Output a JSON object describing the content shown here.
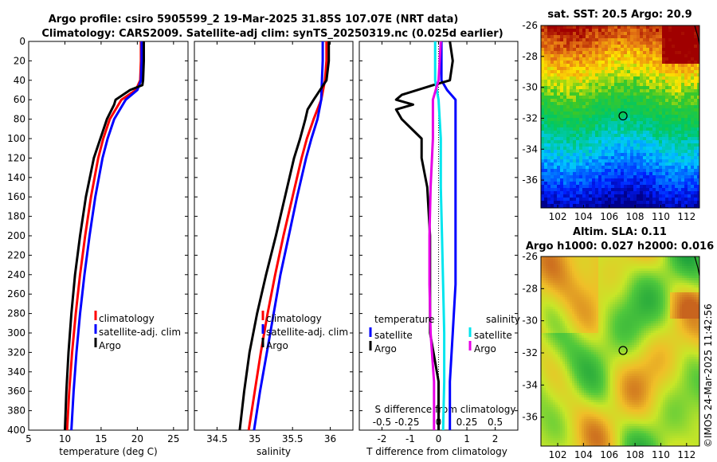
{
  "titles": {
    "line1": "Argo profile: csiro 5905599_2 19-Mar-2025 31.85S 107.07E (NRT data)",
    "line2": "Climatology: CARS2009. Satellite-adj clim: synTS_20250319.nc (0.025d earlier)",
    "sst": "sat. SST: 20.5 Argo: 20.9",
    "sla1": "Altim. SLA: 0.11",
    "sla2": "Argo h1000: 0.027 h2000: 0.016"
  },
  "watermark": "©IMOS 24-Mar-2025 11:42:56",
  "colors": {
    "climatology": "#ff0000",
    "satellite": "#0000ff",
    "argo": "#000000",
    "sat_s": "#00e5ee",
    "argo_s": "#e600e6"
  },
  "chart_data": [
    {
      "type": "line",
      "name": "temperature-profile",
      "xlabel": "temperature (deg C)",
      "xlim": [
        5,
        27
      ],
      "xticks": [
        5,
        10,
        15,
        20,
        25
      ],
      "ylim": [
        400,
        0
      ],
      "yticks": [
        0,
        20,
        40,
        60,
        80,
        100,
        120,
        140,
        160,
        180,
        200,
        220,
        240,
        260,
        280,
        300,
        320,
        340,
        360,
        380,
        400
      ],
      "legend": [
        "climatology",
        "satellite-adj. clim",
        "Argo"
      ],
      "series": [
        {
          "name": "climatology",
          "color": "#ff0000",
          "depth": [
            0,
            20,
            40,
            50,
            60,
            80,
            100,
            120,
            160,
            200,
            240,
            280,
            320,
            360,
            400
          ],
          "values": [
            20.5,
            20.5,
            20.4,
            19.8,
            17.8,
            16.2,
            15.3,
            14.6,
            13.6,
            12.8,
            12.1,
            11.5,
            11.0,
            10.6,
            10.3
          ]
        },
        {
          "name": "satellite-adj. clim",
          "color": "#0000ff",
          "depth": [
            0,
            20,
            40,
            50,
            60,
            80,
            100,
            120,
            160,
            200,
            240,
            280,
            320,
            360,
            400
          ],
          "values": [
            20.6,
            20.6,
            20.5,
            20.0,
            18.4,
            16.8,
            15.9,
            15.2,
            14.2,
            13.4,
            12.7,
            12.1,
            11.6,
            11.2,
            10.9
          ]
        },
        {
          "name": "Argo",
          "color": "#000000",
          "depth": [
            0,
            20,
            40,
            45,
            50,
            60,
            65,
            80,
            100,
            120,
            160,
            200,
            240,
            280,
            320,
            360,
            400
          ],
          "values": [
            20.9,
            20.9,
            20.8,
            20.7,
            19.0,
            17.0,
            16.8,
            15.8,
            14.9,
            14.0,
            12.9,
            12.1,
            11.4,
            10.9,
            10.5,
            10.2,
            10.0
          ]
        }
      ]
    },
    {
      "type": "line",
      "name": "salinity-profile",
      "xlabel": "salinity",
      "xlim": [
        34.2,
        36.3
      ],
      "xticks": [
        34.5,
        35,
        35.5,
        36
      ],
      "ylim": [
        400,
        0
      ],
      "legend": [
        "climatology",
        "satellite-adj. clim",
        "Argo"
      ],
      "series": [
        {
          "name": "climatology",
          "color": "#ff0000",
          "depth": [
            0,
            20,
            40,
            60,
            80,
            100,
            120,
            160,
            200,
            240,
            280,
            320,
            360,
            400
          ],
          "values": [
            35.95,
            35.95,
            35.93,
            35.88,
            35.78,
            35.69,
            35.62,
            35.5,
            35.38,
            35.27,
            35.17,
            35.08,
            35.0,
            34.92
          ]
        },
        {
          "name": "satellite-adj. clim",
          "color": "#0000ff",
          "depth": [
            0,
            20,
            40,
            60,
            80,
            100,
            120,
            160,
            200,
            240,
            280,
            320,
            360,
            400
          ],
          "values": [
            35.9,
            35.9,
            35.89,
            35.88,
            35.83,
            35.75,
            35.68,
            35.56,
            35.45,
            35.34,
            35.25,
            35.16,
            35.07,
            34.99
          ]
        },
        {
          "name": "Argo",
          "color": "#000000",
          "depth": [
            0,
            20,
            40,
            60,
            70,
            80,
            100,
            120,
            160,
            200,
            240,
            280,
            320,
            360,
            400
          ],
          "values": [
            35.98,
            35.98,
            35.95,
            35.78,
            35.7,
            35.67,
            35.6,
            35.52,
            35.4,
            35.28,
            35.15,
            35.03,
            34.93,
            34.86,
            34.8
          ]
        }
      ]
    },
    {
      "type": "line",
      "name": "difference-profile",
      "xlabel": "T difference from climatology",
      "xlim": [
        -2.8,
        2.8
      ],
      "xticks": [
        -2,
        -1,
        0,
        1,
        2
      ],
      "top_label": "S difference from climatology",
      "top_ticks": [
        "-0.5",
        "-0.25",
        "0",
        "0.25",
        "0.5"
      ],
      "ylim": [
        400,
        0
      ],
      "legend_temperature": {
        "title": "temperature",
        "items": [
          "satellite",
          "Argo"
        ]
      },
      "legend_salinity": {
        "title": "salinity",
        "items": [
          "satellite",
          "Argo"
        ]
      },
      "series": [
        {
          "name": "temperature satellite",
          "color": "#0000ff",
          "depth": [
            0,
            40,
            50,
            60,
            80,
            100,
            150,
            200,
            250,
            300,
            350,
            400
          ],
          "values": [
            0.1,
            0.1,
            0.3,
            0.6,
            0.6,
            0.6,
            0.6,
            0.6,
            0.6,
            0.5,
            0.4,
            0.4
          ]
        },
        {
          "name": "temperature Argo",
          "color": "#000000",
          "depth": [
            0,
            20,
            40,
            45,
            55,
            60,
            65,
            70,
            80,
            100,
            120,
            150,
            200,
            250,
            300,
            350,
            400
          ],
          "values": [
            0.4,
            0.5,
            0.4,
            -0.2,
            -1.3,
            -1.5,
            -0.9,
            -1.5,
            -1.3,
            -0.6,
            -0.6,
            -0.4,
            -0.3,
            -0.3,
            -0.3,
            0.0,
            0.0
          ]
        },
        {
          "name": "salinity satellite",
          "color": "#00e5ee",
          "depth": [
            0,
            40,
            60,
            100,
            150,
            200,
            250,
            300,
            350,
            400
          ],
          "values": [
            -0.03,
            -0.03,
            0.0,
            0.02,
            0.02,
            0.03,
            0.04,
            0.05,
            0.05,
            0.04
          ]
        },
        {
          "name": "salinity Argo",
          "color": "#e600e6",
          "depth": [
            0,
            40,
            60,
            80,
            100,
            150,
            200,
            250,
            300,
            350,
            400
          ],
          "values": [
            0.02,
            0.0,
            -0.05,
            -0.05,
            -0.05,
            -0.07,
            -0.08,
            -0.08,
            -0.07,
            -0.04,
            -0.04
          ]
        }
      ]
    },
    {
      "type": "heatmap",
      "name": "sst-map",
      "xticks": [
        102,
        104,
        106,
        108,
        110,
        112
      ],
      "yticks": [
        -26,
        -28,
        -30,
        -32,
        -34,
        -36
      ],
      "xlim": [
        100.7,
        113
      ],
      "ylim": [
        -37.8,
        -26
      ],
      "marker": {
        "lon": 107.07,
        "lat": -31.85
      }
    },
    {
      "type": "heatmap",
      "name": "sla-map",
      "xticks": [
        102,
        104,
        106,
        108,
        110,
        112
      ],
      "yticks": [
        -26,
        -28,
        -30,
        -32,
        -34,
        -36
      ],
      "xlim": [
        100.7,
        113
      ],
      "ylim": [
        -37.8,
        -26
      ],
      "marker": {
        "lon": 107.07,
        "lat": -31.85
      }
    }
  ]
}
